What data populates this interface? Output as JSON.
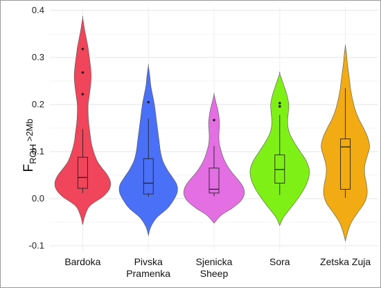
{
  "chart_data": {
    "type": "violin",
    "ylabel": {
      "symbol": "F",
      "subscript": "ROH",
      "suffix": " >2Mb"
    },
    "ylim": [
      -0.1,
      0.4
    ],
    "yticks": [
      -0.1,
      0.0,
      0.1,
      0.2,
      0.3,
      0.4
    ],
    "ytick_labels": [
      "-0.1",
      "0.0",
      "0.1",
      "0.2",
      "0.3",
      "0.4"
    ],
    "grid": true,
    "categories": [
      {
        "label_lines": [
          "Bardoka"
        ],
        "color": "#f0455a",
        "range": [
          -0.055,
          0.385
        ],
        "density": [
          [
            -0.055,
            0.0
          ],
          [
            -0.035,
            0.02
          ],
          [
            -0.015,
            0.06
          ],
          [
            0.005,
            0.17
          ],
          [
            0.02,
            0.22
          ],
          [
            0.035,
            0.23
          ],
          [
            0.05,
            0.205
          ],
          [
            0.065,
            0.16
          ],
          [
            0.08,
            0.12
          ],
          [
            0.1,
            0.09
          ],
          [
            0.12,
            0.07
          ],
          [
            0.14,
            0.06
          ],
          [
            0.16,
            0.05
          ],
          [
            0.18,
            0.045
          ],
          [
            0.2,
            0.045
          ],
          [
            0.22,
            0.055
          ],
          [
            0.24,
            0.065
          ],
          [
            0.26,
            0.07
          ],
          [
            0.28,
            0.065
          ],
          [
            0.3,
            0.055
          ],
          [
            0.32,
            0.045
          ],
          [
            0.34,
            0.03
          ],
          [
            0.36,
            0.015
          ],
          [
            0.385,
            0.0
          ]
        ],
        "box": {
          "q1": 0.022,
          "median": 0.045,
          "q3": 0.088,
          "whisker_low": 0.012,
          "whisker_high": 0.148
        },
        "outliers": [
          0.222,
          0.268,
          0.318
        ]
      },
      {
        "label_lines": [
          "Pivska",
          "Pramenka"
        ],
        "color": "#4a70f7",
        "range": [
          -0.078,
          0.283
        ],
        "density": [
          [
            -0.078,
            0.0
          ],
          [
            -0.06,
            0.02
          ],
          [
            -0.04,
            0.07
          ],
          [
            -0.02,
            0.16
          ],
          [
            0.0,
            0.215
          ],
          [
            0.015,
            0.24
          ],
          [
            0.03,
            0.235
          ],
          [
            0.045,
            0.2
          ],
          [
            0.06,
            0.16
          ],
          [
            0.08,
            0.12
          ],
          [
            0.1,
            0.1
          ],
          [
            0.12,
            0.09
          ],
          [
            0.14,
            0.08
          ],
          [
            0.16,
            0.07
          ],
          [
            0.18,
            0.06
          ],
          [
            0.2,
            0.05
          ],
          [
            0.22,
            0.035
          ],
          [
            0.24,
            0.02
          ],
          [
            0.26,
            0.012
          ],
          [
            0.283,
            0.0
          ]
        ],
        "box": {
          "q1": 0.01,
          "median": 0.033,
          "q3": 0.085,
          "whisker_low": 0.004,
          "whisker_high": 0.17
        },
        "outliers": [
          0.205
        ]
      },
      {
        "label_lines": [
          "Sjenicka",
          "Sheep"
        ],
        "color": "#e36fe3",
        "range": [
          -0.052,
          0.222
        ],
        "density": [
          [
            -0.052,
            0.0
          ],
          [
            -0.035,
            0.06
          ],
          [
            -0.02,
            0.15
          ],
          [
            -0.005,
            0.22
          ],
          [
            0.01,
            0.25
          ],
          [
            0.025,
            0.24
          ],
          [
            0.04,
            0.2
          ],
          [
            0.055,
            0.15
          ],
          [
            0.07,
            0.11
          ],
          [
            0.085,
            0.08
          ],
          [
            0.1,
            0.06
          ],
          [
            0.115,
            0.045
          ],
          [
            0.13,
            0.04
          ],
          [
            0.145,
            0.042
          ],
          [
            0.16,
            0.045
          ],
          [
            0.175,
            0.04
          ],
          [
            0.19,
            0.03
          ],
          [
            0.205,
            0.015
          ],
          [
            0.222,
            0.0
          ]
        ],
        "box": {
          "q1": 0.012,
          "median": 0.02,
          "q3": 0.065,
          "whisker_low": 0.005,
          "whisker_high": 0.112
        },
        "outliers": [
          0.167
        ]
      },
      {
        "label_lines": [
          "Sora"
        ],
        "color": "#7ff015",
        "range": [
          -0.057,
          0.266
        ],
        "density": [
          [
            -0.057,
            0.0
          ],
          [
            -0.04,
            0.03
          ],
          [
            -0.02,
            0.09
          ],
          [
            0.0,
            0.15
          ],
          [
            0.02,
            0.2
          ],
          [
            0.04,
            0.235
          ],
          [
            0.06,
            0.245
          ],
          [
            0.08,
            0.22
          ],
          [
            0.1,
            0.17
          ],
          [
            0.12,
            0.12
          ],
          [
            0.14,
            0.08
          ],
          [
            0.16,
            0.065
          ],
          [
            0.18,
            0.07
          ],
          [
            0.2,
            0.075
          ],
          [
            0.22,
            0.06
          ],
          [
            0.24,
            0.035
          ],
          [
            0.266,
            0.0
          ]
        ],
        "box": {
          "q1": 0.033,
          "median": 0.062,
          "q3": 0.093,
          "whisker_low": 0.008,
          "whisker_high": 0.178
        },
        "outliers": [
          0.196,
          0.203
        ]
      },
      {
        "label_lines": [
          "Zetska Zuja"
        ],
        "color": "#f2ab12",
        "range": [
          -0.09,
          0.325
        ],
        "density": [
          [
            -0.09,
            0.0
          ],
          [
            -0.07,
            0.02
          ],
          [
            -0.05,
            0.05
          ],
          [
            -0.03,
            0.1
          ],
          [
            -0.01,
            0.155
          ],
          [
            0.01,
            0.18
          ],
          [
            0.03,
            0.175
          ],
          [
            0.05,
            0.16
          ],
          [
            0.07,
            0.16
          ],
          [
            0.09,
            0.18
          ],
          [
            0.11,
            0.2
          ],
          [
            0.13,
            0.185
          ],
          [
            0.15,
            0.15
          ],
          [
            0.17,
            0.11
          ],
          [
            0.19,
            0.08
          ],
          [
            0.21,
            0.06
          ],
          [
            0.23,
            0.045
          ],
          [
            0.25,
            0.035
          ],
          [
            0.27,
            0.025
          ],
          [
            0.29,
            0.015
          ],
          [
            0.31,
            0.008
          ],
          [
            0.325,
            0.0
          ]
        ],
        "box": {
          "q1": 0.02,
          "median": 0.11,
          "q3": 0.127,
          "whisker_low": 0.002,
          "whisker_high": 0.235
        },
        "outliers": []
      }
    ]
  }
}
